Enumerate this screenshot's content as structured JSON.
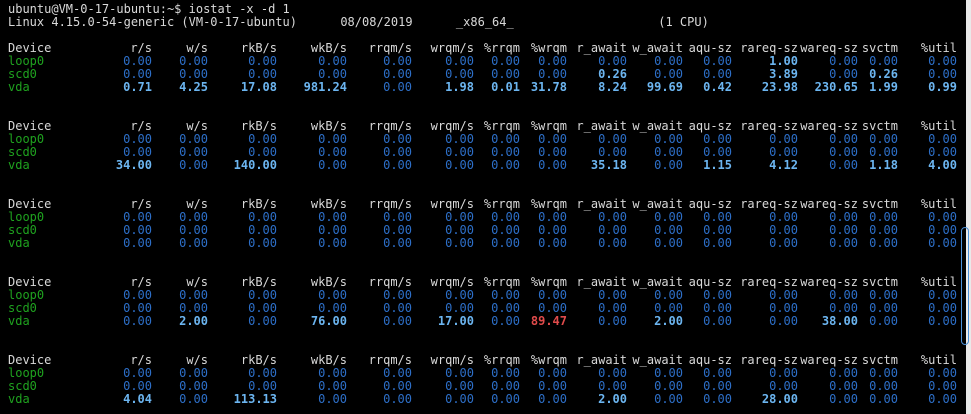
{
  "colors": {
    "background": "#000000",
    "foreground": "#d9d9d9",
    "device_green": "#1fa21f",
    "value_blue": "#2d6fc8",
    "value_blue_bright": "#6cb5f0",
    "alert_red": "#e04b4b",
    "scrollbar_track": "#e9e9e9",
    "scrollbar_thumb_border": "#4a90d8"
  },
  "terminal": {
    "prompt_line": "ubuntu@VM-0-17-ubuntu:~$ iostat -x -d 1",
    "system_line": "Linux 4.15.0-54-generic (VM-0-17-ubuntu)      08/08/2019      _x86_64_                    (1 CPU)"
  },
  "table": {
    "style_legend": "n = normal blue, b = bold bright blue, r = bold red",
    "columns": [
      "Device",
      "r/s",
      "w/s",
      "rkB/s",
      "wkB/s",
      "rrqm/s",
      "wrqm/s",
      "%rrqm",
      "%wrqm",
      "r_await",
      "w_await",
      "aqu-sz",
      "rareq-sz",
      "wareq-sz",
      "svctm",
      "%util"
    ],
    "blocks": [
      {
        "rows": [
          {
            "device": "loop0",
            "values": [
              "0.00",
              "0.00",
              "0.00",
              "0.00",
              "0.00",
              "0.00",
              "0.00",
              "0.00",
              "0.00",
              "0.00",
              "0.00",
              "1.00",
              "0.00",
              "0.00",
              "0.00"
            ],
            "styles": [
              "n",
              "n",
              "n",
              "n",
              "n",
              "n",
              "n",
              "n",
              "n",
              "n",
              "n",
              "b",
              "n",
              "n",
              "n"
            ]
          },
          {
            "device": "scd0",
            "values": [
              "0.00",
              "0.00",
              "0.00",
              "0.00",
              "0.00",
              "0.00",
              "0.00",
              "0.00",
              "0.26",
              "0.00",
              "0.00",
              "3.89",
              "0.00",
              "0.26",
              "0.00"
            ],
            "styles": [
              "n",
              "n",
              "n",
              "n",
              "n",
              "n",
              "n",
              "n",
              "b",
              "n",
              "n",
              "b",
              "n",
              "b",
              "n"
            ]
          },
          {
            "device": "vda",
            "values": [
              "0.71",
              "4.25",
              "17.08",
              "981.24",
              "0.00",
              "1.98",
              "0.01",
              "31.78",
              "8.24",
              "99.69",
              "0.42",
              "23.98",
              "230.65",
              "1.99",
              "0.99"
            ],
            "styles": [
              "b",
              "b",
              "b",
              "b",
              "n",
              "b",
              "b",
              "b",
              "b",
              "b",
              "b",
              "b",
              "b",
              "b",
              "b"
            ]
          }
        ]
      },
      {
        "rows": [
          {
            "device": "loop0",
            "values": [
              "0.00",
              "0.00",
              "0.00",
              "0.00",
              "0.00",
              "0.00",
              "0.00",
              "0.00",
              "0.00",
              "0.00",
              "0.00",
              "0.00",
              "0.00",
              "0.00",
              "0.00"
            ],
            "styles": [
              "n",
              "n",
              "n",
              "n",
              "n",
              "n",
              "n",
              "n",
              "n",
              "n",
              "n",
              "n",
              "n",
              "n",
              "n"
            ]
          },
          {
            "device": "scd0",
            "values": [
              "0.00",
              "0.00",
              "0.00",
              "0.00",
              "0.00",
              "0.00",
              "0.00",
              "0.00",
              "0.00",
              "0.00",
              "0.00",
              "0.00",
              "0.00",
              "0.00",
              "0.00"
            ],
            "styles": [
              "n",
              "n",
              "n",
              "n",
              "n",
              "n",
              "n",
              "n",
              "n",
              "n",
              "n",
              "n",
              "n",
              "n",
              "n"
            ]
          },
          {
            "device": "vda",
            "values": [
              "34.00",
              "0.00",
              "140.00",
              "0.00",
              "0.00",
              "0.00",
              "0.00",
              "0.00",
              "35.18",
              "0.00",
              "1.15",
              "4.12",
              "0.00",
              "1.18",
              "4.00"
            ],
            "styles": [
              "b",
              "n",
              "b",
              "n",
              "n",
              "n",
              "n",
              "n",
              "b",
              "n",
              "b",
              "b",
              "n",
              "b",
              "b"
            ]
          }
        ]
      },
      {
        "rows": [
          {
            "device": "loop0",
            "values": [
              "0.00",
              "0.00",
              "0.00",
              "0.00",
              "0.00",
              "0.00",
              "0.00",
              "0.00",
              "0.00",
              "0.00",
              "0.00",
              "0.00",
              "0.00",
              "0.00",
              "0.00"
            ],
            "styles": [
              "n",
              "n",
              "n",
              "n",
              "n",
              "n",
              "n",
              "n",
              "n",
              "n",
              "n",
              "n",
              "n",
              "n",
              "n"
            ]
          },
          {
            "device": "scd0",
            "values": [
              "0.00",
              "0.00",
              "0.00",
              "0.00",
              "0.00",
              "0.00",
              "0.00",
              "0.00",
              "0.00",
              "0.00",
              "0.00",
              "0.00",
              "0.00",
              "0.00",
              "0.00"
            ],
            "styles": [
              "n",
              "n",
              "n",
              "n",
              "n",
              "n",
              "n",
              "n",
              "n",
              "n",
              "n",
              "n",
              "n",
              "n",
              "n"
            ]
          },
          {
            "device": "vda",
            "values": [
              "0.00",
              "0.00",
              "0.00",
              "0.00",
              "0.00",
              "0.00",
              "0.00",
              "0.00",
              "0.00",
              "0.00",
              "0.00",
              "0.00",
              "0.00",
              "0.00",
              "0.00"
            ],
            "styles": [
              "n",
              "n",
              "n",
              "n",
              "n",
              "n",
              "n",
              "n",
              "n",
              "n",
              "n",
              "n",
              "n",
              "n",
              "n"
            ]
          }
        ]
      },
      {
        "rows": [
          {
            "device": "loop0",
            "values": [
              "0.00",
              "0.00",
              "0.00",
              "0.00",
              "0.00",
              "0.00",
              "0.00",
              "0.00",
              "0.00",
              "0.00",
              "0.00",
              "0.00",
              "0.00",
              "0.00",
              "0.00"
            ],
            "styles": [
              "n",
              "n",
              "n",
              "n",
              "n",
              "n",
              "n",
              "n",
              "n",
              "n",
              "n",
              "n",
              "n",
              "n",
              "n"
            ]
          },
          {
            "device": "scd0",
            "values": [
              "0.00",
              "0.00",
              "0.00",
              "0.00",
              "0.00",
              "0.00",
              "0.00",
              "0.00",
              "0.00",
              "0.00",
              "0.00",
              "0.00",
              "0.00",
              "0.00",
              "0.00"
            ],
            "styles": [
              "n",
              "n",
              "n",
              "n",
              "n",
              "n",
              "n",
              "n",
              "n",
              "n",
              "n",
              "n",
              "n",
              "n",
              "n"
            ]
          },
          {
            "device": "vda",
            "values": [
              "0.00",
              "2.00",
              "0.00",
              "76.00",
              "0.00",
              "17.00",
              "0.00",
              "89.47",
              "0.00",
              "2.00",
              "0.00",
              "0.00",
              "38.00",
              "0.00",
              "0.00"
            ],
            "styles": [
              "n",
              "b",
              "n",
              "b",
              "n",
              "b",
              "n",
              "r",
              "n",
              "b",
              "n",
              "n",
              "b",
              "n",
              "n"
            ]
          }
        ]
      },
      {
        "rows": [
          {
            "device": "loop0",
            "values": [
              "0.00",
              "0.00",
              "0.00",
              "0.00",
              "0.00",
              "0.00",
              "0.00",
              "0.00",
              "0.00",
              "0.00",
              "0.00",
              "0.00",
              "0.00",
              "0.00",
              "0.00"
            ],
            "styles": [
              "n",
              "n",
              "n",
              "n",
              "n",
              "n",
              "n",
              "n",
              "n",
              "n",
              "n",
              "n",
              "n",
              "n",
              "n"
            ]
          },
          {
            "device": "scd0",
            "values": [
              "0.00",
              "0.00",
              "0.00",
              "0.00",
              "0.00",
              "0.00",
              "0.00",
              "0.00",
              "0.00",
              "0.00",
              "0.00",
              "0.00",
              "0.00",
              "0.00",
              "0.00"
            ],
            "styles": [
              "n",
              "n",
              "n",
              "n",
              "n",
              "n",
              "n",
              "n",
              "n",
              "n",
              "n",
              "n",
              "n",
              "n",
              "n"
            ]
          },
          {
            "device": "vda",
            "values": [
              "4.04",
              "0.00",
              "113.13",
              "0.00",
              "0.00",
              "0.00",
              "0.00",
              "0.00",
              "2.00",
              "0.00",
              "0.00",
              "28.00",
              "0.00",
              "0.00",
              "0.00"
            ],
            "styles": [
              "b",
              "n",
              "b",
              "n",
              "n",
              "n",
              "n",
              "n",
              "b",
              "n",
              "n",
              "b",
              "n",
              "n",
              "n"
            ]
          }
        ]
      }
    ]
  }
}
